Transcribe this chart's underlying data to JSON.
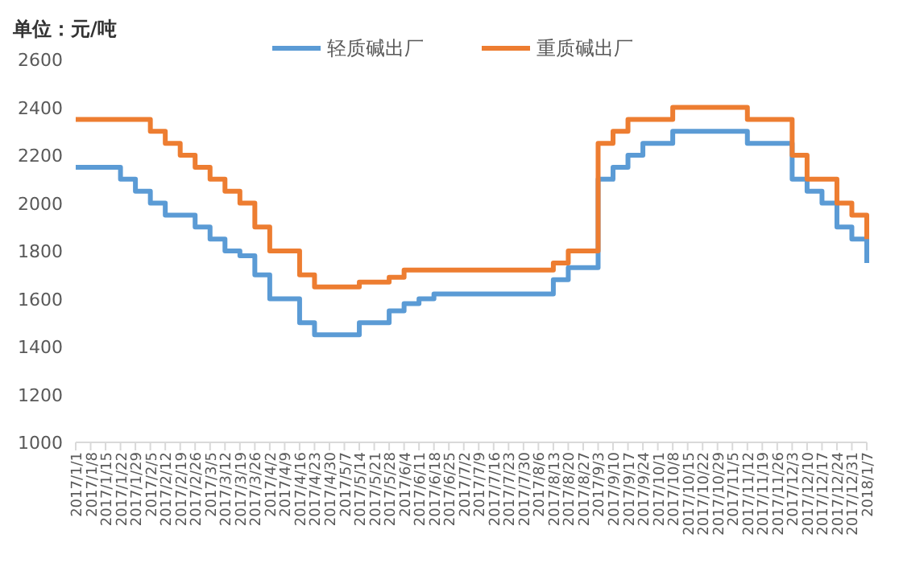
{
  "chart_data": {
    "type": "step",
    "ylabel": "单位：元/吨",
    "categories": [
      "2017/1/1",
      "2017/1/8",
      "2017/1/15",
      "2017/1/22",
      "2017/1/29",
      "2017/2/5",
      "2017/2/12",
      "2017/2/19",
      "2017/2/26",
      "2017/3/5",
      "2017/3/12",
      "2017/3/19",
      "2017/3/26",
      "2017/4/2",
      "2017/4/9",
      "2017/4/16",
      "2017/4/23",
      "2017/4/30",
      "2017/5/7",
      "2017/5/14",
      "2017/5/21",
      "2017/5/28",
      "2017/6/4",
      "2017/6/11",
      "2017/6/18",
      "2017/6/25",
      "2017/7/2",
      "2017/7/9",
      "2017/7/16",
      "2017/7/23",
      "2017/7/30",
      "2017/8/6",
      "2017/8/13",
      "2017/8/20",
      "2017/8/27",
      "2017/9/3",
      "2017/9/10",
      "2017/9/17",
      "2017/9/24",
      "2017/10/1",
      "2017/10/8",
      "2017/10/15",
      "2017/10/22",
      "2017/10/29",
      "2017/11/5",
      "2017/11/12",
      "2017/11/19",
      "2017/11/26",
      "2017/12/3",
      "2017/12/10",
      "2017/12/17",
      "2017/12/24",
      "2017/12/31",
      "2018/1/7"
    ],
    "series": [
      {
        "name": "轻质碱出厂",
        "color": "#5b9bd5",
        "values": [
          2150,
          2150,
          2150,
          2100,
          2050,
          2000,
          1950,
          1950,
          1900,
          1850,
          1800,
          1780,
          1700,
          1600,
          1600,
          1500,
          1450,
          1450,
          1450,
          1500,
          1500,
          1550,
          1580,
          1600,
          1620,
          1620,
          1620,
          1620,
          1620,
          1620,
          1620,
          1620,
          1680,
          1730,
          1730,
          2100,
          2150,
          2200,
          2250,
          2250,
          2300,
          2300,
          2300,
          2300,
          2300,
          2250,
          2250,
          2250,
          2100,
          2050,
          2000,
          1900,
          1850,
          1750
        ]
      },
      {
        "name": "重质碱出厂",
        "color": "#ed7d31",
        "values": [
          2350,
          2350,
          2350,
          2350,
          2350,
          2300,
          2250,
          2200,
          2150,
          2100,
          2050,
          2000,
          1900,
          1800,
          1800,
          1700,
          1650,
          1650,
          1650,
          1670,
          1670,
          1690,
          1720,
          1720,
          1720,
          1720,
          1720,
          1720,
          1720,
          1720,
          1720,
          1720,
          1750,
          1800,
          1800,
          2250,
          2300,
          2350,
          2350,
          2350,
          2400,
          2400,
          2400,
          2400,
          2400,
          2350,
          2350,
          2350,
          2200,
          2100,
          2100,
          2000,
          1950,
          1850
        ]
      }
    ],
    "ylim": [
      1000,
      2600
    ],
    "yticks": [
      1000,
      1200,
      1400,
      1600,
      1800,
      2000,
      2200,
      2400,
      2600
    ],
    "grid": false,
    "legend": "top"
  }
}
